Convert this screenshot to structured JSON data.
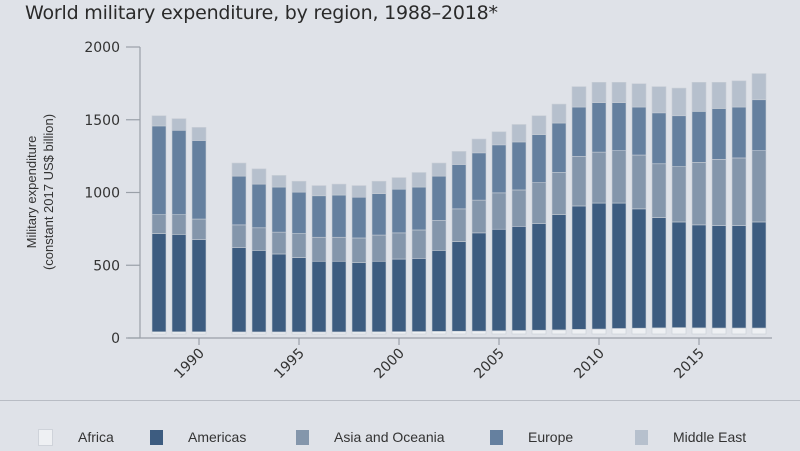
{
  "chart_data": {
    "type": "bar",
    "stacked": true,
    "title": "World military expenditure, by region, 1988–2018*",
    "ylabel_line1": "Military expenditure",
    "ylabel_line2": "(constant 2017 US$ billion)",
    "xlabel": "",
    "ylim": [
      0,
      2000
    ],
    "yticks": [
      0,
      500,
      1000,
      1500,
      2000
    ],
    "xticks": [
      1990,
      1995,
      2000,
      2005,
      2010,
      2015
    ],
    "legend_position": "bottom",
    "categories": [
      1988,
      1989,
      1990,
      1992,
      1993,
      1994,
      1995,
      1996,
      1997,
      1998,
      1999,
      2000,
      2001,
      2002,
      2003,
      2004,
      2005,
      2006,
      2007,
      2008,
      2009,
      2010,
      2011,
      2012,
      2013,
      2014,
      2015,
      2016,
      2017,
      2018
    ],
    "series": [
      {
        "name": "Africa",
        "color": "#eef0f3",
        "values": [
          15,
          15,
          15,
          14,
          14,
          14,
          14,
          14,
          14,
          15,
          15,
          16,
          17,
          18,
          19,
          20,
          22,
          24,
          26,
          28,
          32,
          34,
          38,
          40,
          42,
          44,
          42,
          41,
          41,
          41
        ]
      },
      {
        "name": "Americas",
        "color": "#3d5c80",
        "values": [
          675,
          670,
          635,
          581,
          561,
          536,
          511,
          486,
          486,
          475,
          485,
          499,
          503,
          557,
          616,
          675,
          698,
          716,
          734,
          792,
          848,
          866,
          862,
          820,
          758,
          726,
          708,
          704,
          704,
          729
        ]
      },
      {
        "name": "Asia and Oceania",
        "color": "#8496ab",
        "values": [
          130,
          135,
          140,
          155,
          155,
          150,
          165,
          165,
          165,
          170,
          180,
          180,
          195,
          205,
          225,
          225,
          250,
          250,
          280,
          290,
          340,
          350,
          360,
          370,
          370,
          380,
          430,
          455,
          465,
          490
        ]
      },
      {
        "name": "Europe",
        "color": "#65809f",
        "values": [
          610,
          580,
          540,
          335,
          300,
          310,
          285,
          285,
          290,
          280,
          285,
          300,
          295,
          305,
          305,
          325,
          330,
          330,
          330,
          340,
          340,
          340,
          330,
          330,
          350,
          350,
          350,
          350,
          350,
          350
        ]
      },
      {
        "name": "Middle East",
        "color": "#b6c0cd",
        "values": [
          70,
          80,
          90,
          90,
          105,
          80,
          75,
          70,
          75,
          80,
          85,
          80,
          100,
          90,
          90,
          95,
          90,
          120,
          130,
          130,
          140,
          140,
          140,
          160,
          180,
          190,
          200,
          180,
          180,
          180
        ]
      }
    ]
  }
}
